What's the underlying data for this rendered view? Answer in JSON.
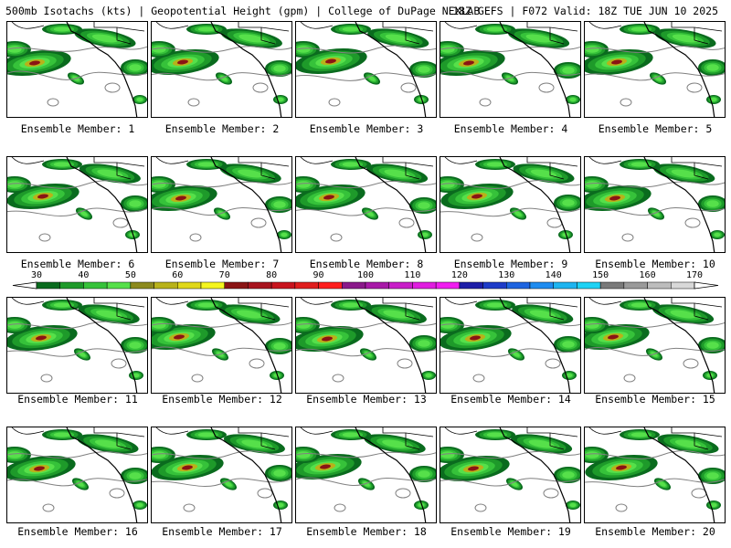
{
  "header": {
    "left": "500mb Isotachs (kts) | Geopotential Height (gpm) | College of DuPage NEXLAB",
    "right": "18Z GEFS | F072 Valid: 18Z TUE JUN 10 2025"
  },
  "members": [
    "Ensemble Member: 1",
    "Ensemble Member: 2",
    "Ensemble Member: 3",
    "Ensemble Member: 4",
    "Ensemble Member: 5",
    "Ensemble Member: 6",
    "Ensemble Member: 7",
    "Ensemble Member: 8",
    "Ensemble Member: 9",
    "Ensemble Member: 10",
    "Ensemble Member: 11",
    "Ensemble Member: 12",
    "Ensemble Member: 13",
    "Ensemble Member: 14",
    "Ensemble Member: 15",
    "Ensemble Member: 16",
    "Ensemble Member: 17",
    "Ensemble Member: 18",
    "Ensemble Member: 19",
    "Ensemble Member: 20"
  ],
  "colorbar": {
    "ticks": [
      "30",
      "40",
      "50",
      "60",
      "70",
      "80",
      "90",
      "100",
      "110",
      "120",
      "130",
      "140",
      "150",
      "160",
      "170"
    ],
    "colors": [
      "#0a6b1e",
      "#1e9a2a",
      "#36c23a",
      "#56e04a",
      "#8c8a1e",
      "#b8b21a",
      "#e0d81a",
      "#f5f51e",
      "#8a1414",
      "#a8141e",
      "#c8141e",
      "#e01e1e",
      "#ff1e1e",
      "#8a1a8a",
      "#a81aa8",
      "#c81ec8",
      "#e01ee0",
      "#f01ef0",
      "#1e1ea8",
      "#1e3cc8",
      "#1e64e0",
      "#1e8cf0",
      "#1eb4f0",
      "#1ed2f5",
      "#7a7a7a",
      "#9a9a9a",
      "#bcbcbc",
      "#d8d8d8"
    ]
  }
}
